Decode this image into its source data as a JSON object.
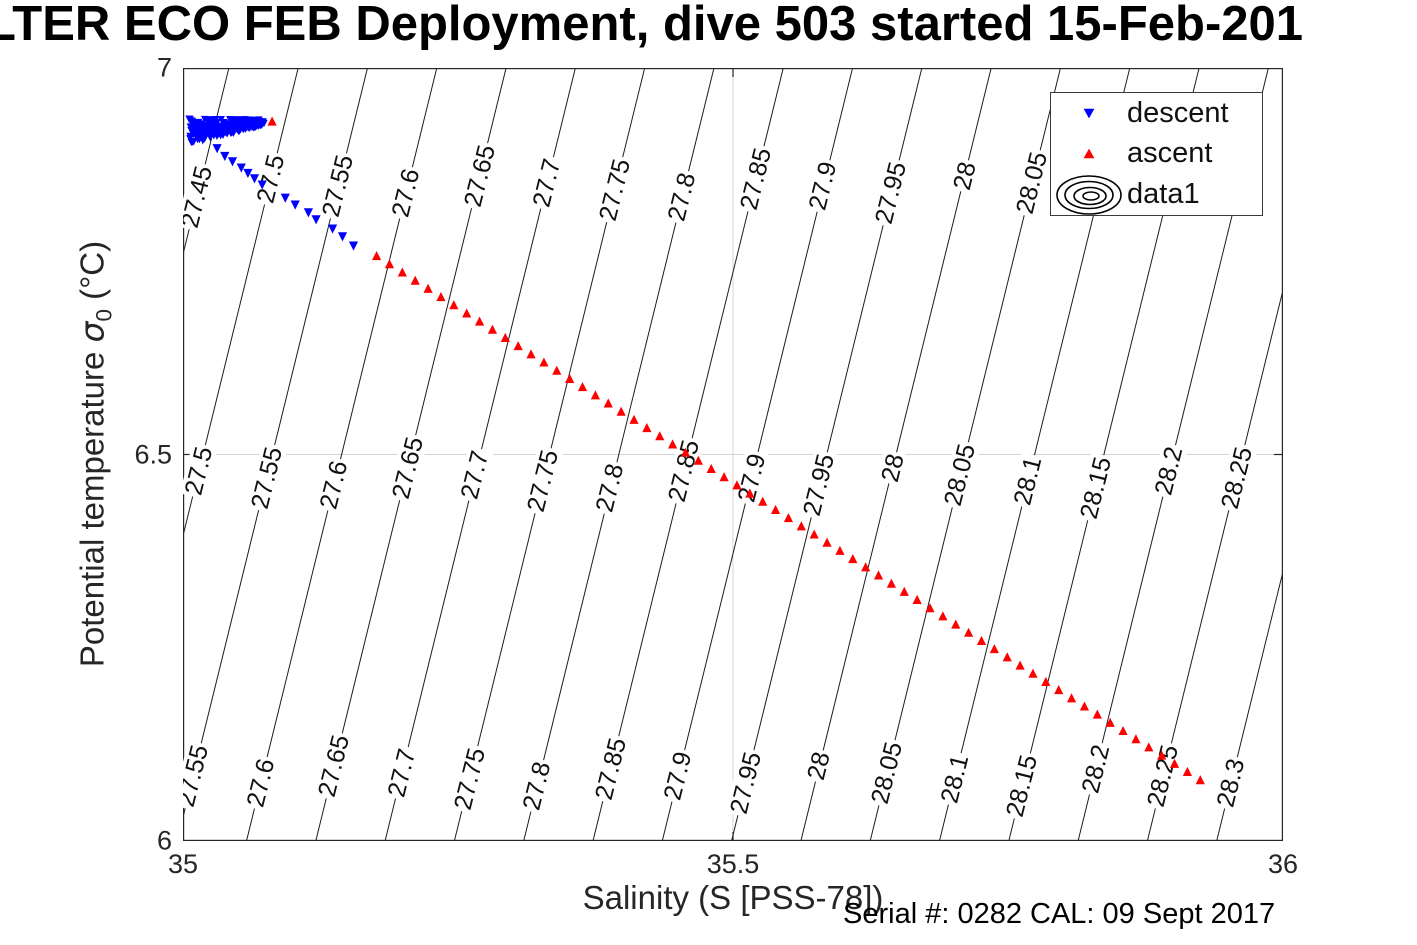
{
  "title": "LTER ECO FEB Deployment, dive 503 started 15-Feb-201",
  "annotation": "Serial #: 0282  CAL: 09 Sept 2017",
  "axes": {
    "x": {
      "label": "Salinity (S [PSS-78])",
      "range": [
        35,
        36
      ],
      "ticks": [
        {
          "value": 35,
          "label": "35"
        },
        {
          "value": 35.5,
          "label": "35.5"
        },
        {
          "value": 36,
          "label": "36"
        }
      ]
    },
    "y": {
      "label_prefix": "Potential temperature ",
      "label_symbol": "σ",
      "label_subscript": "0",
      "label_suffix": " (°C)",
      "range": [
        6,
        7
      ],
      "ticks": [
        {
          "value": 6,
          "label": "6"
        },
        {
          "value": 6.5,
          "label": "6.5"
        },
        {
          "value": 7,
          "label": "7"
        }
      ]
    }
  },
  "legend": {
    "items": [
      {
        "label": "descent",
        "marker": "triangle-down",
        "color": "#0000FF"
      },
      {
        "label": "ascent",
        "marker": "triangle-up",
        "color": "#FF0000"
      },
      {
        "label": "data1",
        "marker": "contour-rings",
        "color": "#000000"
      }
    ]
  },
  "colors": {
    "descent": "#0000FF",
    "ascent": "#FF0000",
    "contour_line": "#1c1c1c",
    "grid": "#d4d4d4",
    "axis_box": "#262626",
    "background": "#ffffff"
  },
  "chart_data": {
    "type": "scatter",
    "title": "LTER ECO FEB Deployment, dive 503 started 15-Feb-201",
    "xlabel": "Salinity (S [PSS-78])",
    "ylabel": "Potential temperature σ0 (°C)",
    "xlim": [
      35,
      36
    ],
    "ylim": [
      6,
      7
    ],
    "x_ticks": [
      35,
      35.5,
      36
    ],
    "y_ticks": [
      6,
      6.5,
      7
    ],
    "grid": true,
    "legend_position": "top-right",
    "series": [
      {
        "name": "descent",
        "marker": "triangle-down",
        "color": "#0000FF",
        "surface_cluster": {
          "s_start": 35.006,
          "s_end": 35.072,
          "theta_start": 6.919,
          "theta_end": 6.93,
          "theta_spread_start": 0.016,
          "theta_spread_end": 0.004,
          "s_jitter": 0.004,
          "n": 230
        },
        "points": [
          [
            35.031,
            6.897
          ],
          [
            35.038,
            6.887
          ],
          [
            35.045,
            6.88
          ],
          [
            35.053,
            6.872
          ],
          [
            35.059,
            6.865
          ],
          [
            35.065,
            6.858
          ],
          [
            35.072,
            6.85
          ],
          [
            35.093,
            6.833
          ],
          [
            35.102,
            6.824
          ],
          [
            35.114,
            6.814
          ],
          [
            35.121,
            6.805
          ],
          [
            35.136,
            6.793
          ],
          [
            35.145,
            6.783
          ],
          [
            35.155,
            6.771
          ]
        ]
      },
      {
        "name": "ascent",
        "marker": "triangle-up",
        "color": "#FF0000",
        "points": [
          [
            35.081,
            6.93
          ],
          [
            35.176,
            6.756
          ],
          [
            35.1877,
            6.7454
          ],
          [
            35.1994,
            6.7348
          ],
          [
            35.2111,
            6.7242
          ],
          [
            35.2228,
            6.7136
          ],
          [
            35.2345,
            6.703
          ],
          [
            35.2462,
            6.6924
          ],
          [
            35.2579,
            6.6818
          ],
          [
            35.2696,
            6.6712
          ],
          [
            35.2813,
            6.6607
          ],
          [
            35.293,
            6.6501
          ],
          [
            35.3047,
            6.6395
          ],
          [
            35.3164,
            6.6289
          ],
          [
            35.3281,
            6.6183
          ],
          [
            35.3398,
            6.6077
          ],
          [
            35.3515,
            6.5971
          ],
          [
            35.3632,
            6.5865
          ],
          [
            35.3749,
            6.5759
          ],
          [
            35.3866,
            6.5653
          ],
          [
            35.3983,
            6.5547
          ],
          [
            35.41,
            6.5441
          ],
          [
            35.4217,
            6.5335
          ],
          [
            35.4334,
            6.5229
          ],
          [
            35.4451,
            6.5123
          ],
          [
            35.4568,
            6.5017
          ],
          [
            35.4685,
            6.4912
          ],
          [
            35.4802,
            6.4806
          ],
          [
            35.4919,
            6.47
          ],
          [
            35.5036,
            6.4594
          ],
          [
            35.5153,
            6.4488
          ],
          [
            35.527,
            6.4382
          ],
          [
            35.5387,
            6.4276
          ],
          [
            35.5504,
            6.417
          ],
          [
            35.5621,
            6.4064
          ],
          [
            35.5738,
            6.3958
          ],
          [
            35.5855,
            6.3852
          ],
          [
            35.5972,
            6.3746
          ],
          [
            35.6089,
            6.364
          ],
          [
            35.6206,
            6.3534
          ],
          [
            35.6323,
            6.3428
          ],
          [
            35.644,
            6.3322
          ],
          [
            35.6557,
            6.3217
          ],
          [
            35.6674,
            6.3111
          ],
          [
            35.6791,
            6.3005
          ],
          [
            35.6908,
            6.2899
          ],
          [
            35.7025,
            6.2793
          ],
          [
            35.7142,
            6.2687
          ],
          [
            35.7259,
            6.2581
          ],
          [
            35.7376,
            6.2475
          ],
          [
            35.7493,
            6.2369
          ],
          [
            35.761,
            6.2263
          ],
          [
            35.7727,
            6.2157
          ],
          [
            35.7844,
            6.2051
          ],
          [
            35.7961,
            6.1945
          ],
          [
            35.8078,
            6.1839
          ],
          [
            35.8195,
            6.1733
          ],
          [
            35.8312,
            6.1628
          ],
          [
            35.8429,
            6.1522
          ],
          [
            35.8546,
            6.1416
          ],
          [
            35.8663,
            6.131
          ],
          [
            35.878,
            6.1204
          ],
          [
            35.8897,
            6.1098
          ],
          [
            35.9014,
            6.0992
          ],
          [
            35.9131,
            6.0886
          ],
          [
            35.9248,
            6.078
          ]
        ]
      }
    ],
    "isopycnal_contours": {
      "levels": [
        27.45,
        27.5,
        27.55,
        27.6,
        27.65,
        27.7,
        27.75,
        27.8,
        27.85,
        27.9,
        27.95,
        28,
        28.05,
        28.1,
        28.15,
        28.2,
        28.25,
        28.3
      ],
      "geometry": {
        "base_level": 27.5,
        "s_at_theta_6_5_for_base": 35.0182,
        "ds_per_level_unit": 1.26,
        "ds_per_theta": 0.173
      },
      "label_bands_theta": [
        6.847,
        6.4696,
        6.0841
      ],
      "label_rotation_deg": -76,
      "color": "#1c1c1c"
    }
  }
}
